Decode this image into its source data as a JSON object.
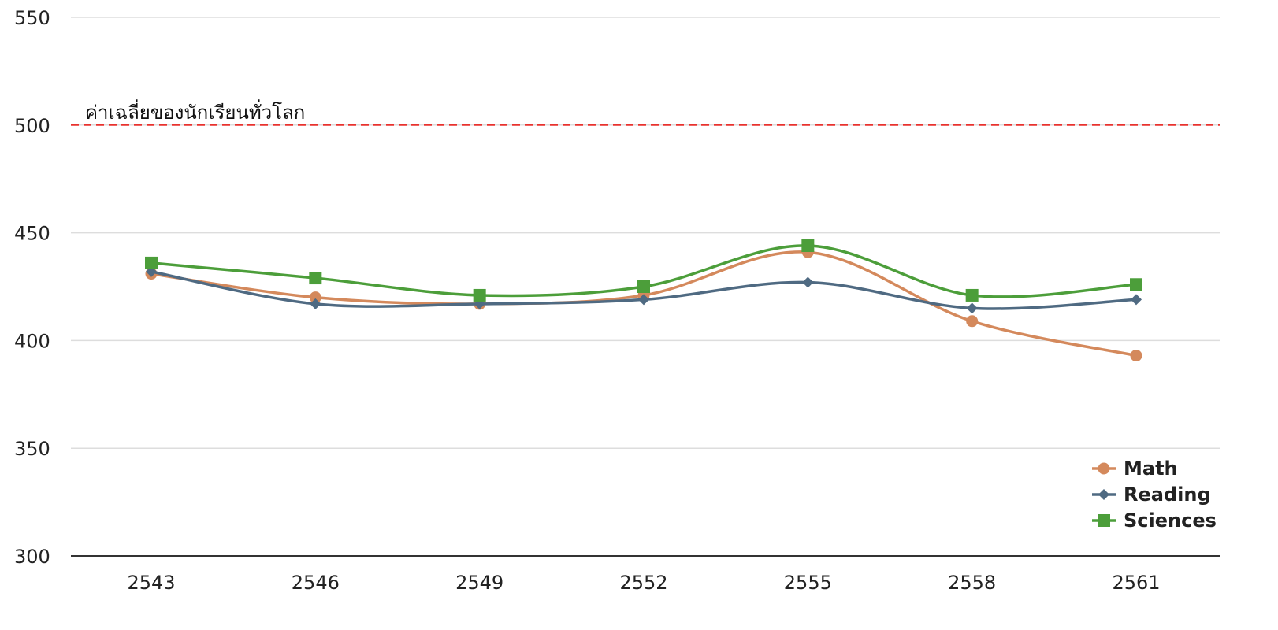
{
  "chart_data": {
    "type": "line",
    "title": "",
    "xlabel": "",
    "ylabel": "",
    "categories": [
      "2543",
      "2546",
      "2549",
      "2552",
      "2555",
      "2558",
      "2561"
    ],
    "ylim": [
      300,
      550
    ],
    "yticks": [
      "300",
      "350",
      "400",
      "450",
      "500",
      "550"
    ],
    "grid": "horizontal",
    "legend_position": "bottom-right",
    "reference_line": {
      "value": 500,
      "label": "ค่าเฉลี่ยของนักเรียนทั่วโลก",
      "color": "#e8322e"
    },
    "series": [
      {
        "name": "Math",
        "values": [
          431,
          420,
          417,
          421,
          441,
          409,
          393
        ],
        "color": "#d4895c",
        "marker": "circle"
      },
      {
        "name": "Reading",
        "values": [
          432,
          417,
          417,
          419,
          427,
          415,
          419
        ],
        "color": "#4f6a82",
        "marker": "diamond"
      },
      {
        "name": "Sciences",
        "values": [
          436,
          429,
          421,
          425,
          444,
          421,
          426
        ],
        "color": "#4c9e3a",
        "marker": "square"
      }
    ]
  }
}
